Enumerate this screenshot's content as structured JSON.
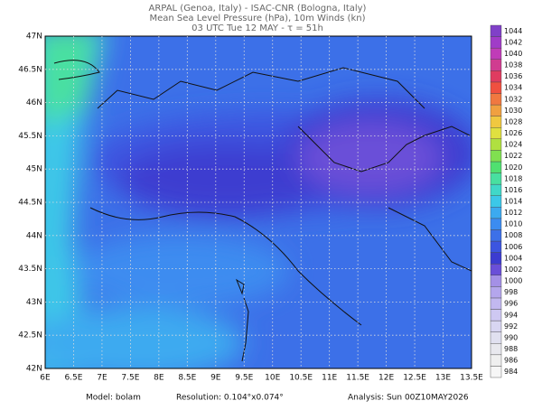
{
  "header": {
    "lines": [
      "ARPAL (Genoa, Italy)  -  ISAC-CNR (Bologna, Italy)",
      "Mean Sea Level Pressure (hPa), 10m Winds (kn)",
      "03 UTC Tue 12 MAY  -  τ = 51h"
    ]
  },
  "map": {
    "lon_labels": [
      "6E",
      "6.5E",
      "7E",
      "7.5E",
      "8E",
      "8.5E",
      "9E",
      "9.5E",
      "10E",
      "10.5E",
      "11E",
      "11.5E",
      "12E",
      "12.5E",
      "13E",
      "13.5E"
    ],
    "lat_labels": [
      "42N",
      "42.5N",
      "43N",
      "43.5N",
      "44N",
      "44.5N",
      "45N",
      "45.5N",
      "46N",
      "46.5N",
      "47N"
    ]
  },
  "colorbar": {
    "labels": [
      "984",
      "986",
      "988",
      "990",
      "992",
      "994",
      "996",
      "998",
      "1000",
      "1002",
      "1004",
      "1006",
      "1008",
      "1010",
      "1012",
      "1014",
      "1016",
      "1018",
      "1020",
      "1022",
      "1024",
      "1026",
      "1028",
      "1030",
      "1032",
      "1034",
      "1036",
      "1038",
      "1040",
      "1042",
      "1044"
    ],
    "colors": [
      "#f6f6f6",
      "#efefef",
      "#e8e8ee",
      "#e0e0f0",
      "#d8d6f2",
      "#cec8f2",
      "#c2b8f0",
      "#b4a6ec",
      "#a490e6",
      "#6a4fd8",
      "#3c3cd0",
      "#3c55e0",
      "#3c70e8",
      "#3c8cf0",
      "#3caaf0",
      "#3cc8e8",
      "#40d8c8",
      "#48e0a0",
      "#50e070",
      "#80e050",
      "#b0e040",
      "#e0e040",
      "#f0c840",
      "#f0a040",
      "#f07840",
      "#f05040",
      "#e03c60",
      "#d03c90",
      "#c03cb8",
      "#a03cc8",
      "#8040c8"
    ]
  },
  "footer": {
    "model": "Model:  bolam",
    "resolution": "Resolution: 0.104°x0.074°",
    "analysis": "Analysis: Sun 00Z10MAY2026"
  }
}
